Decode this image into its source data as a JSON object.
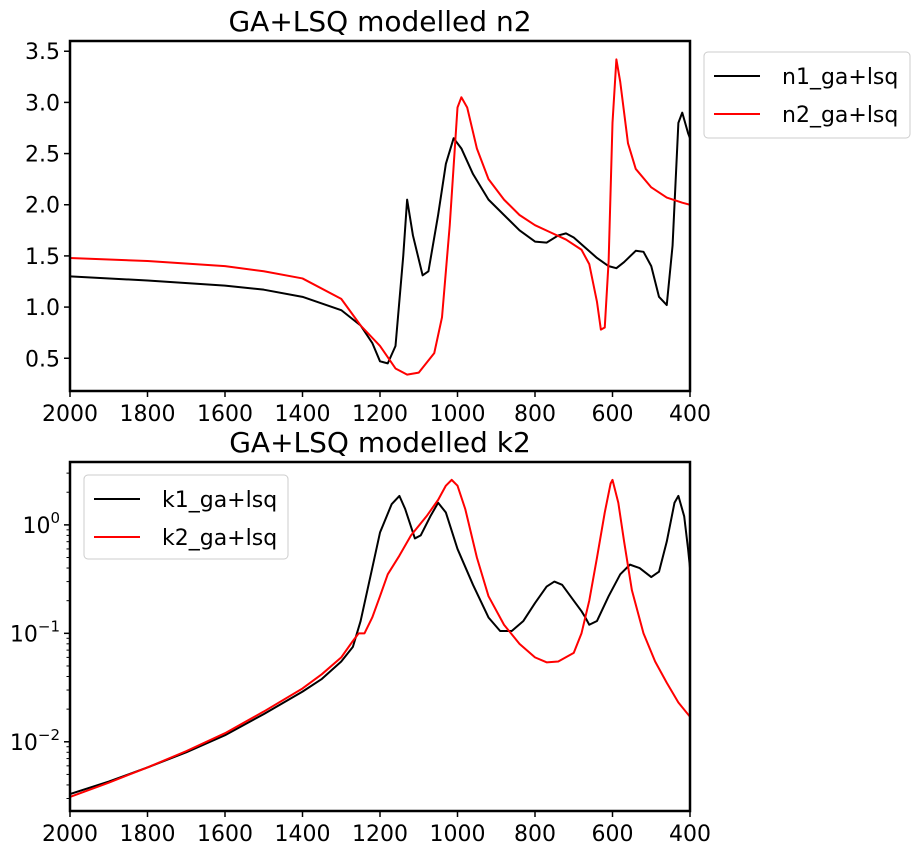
{
  "chart_data": [
    {
      "type": "line",
      "title": "GA+LSQ modelled n2",
      "xlabel": "",
      "ylabel": "",
      "xlim": [
        2000,
        400
      ],
      "ylim": [
        0.18,
        3.6
      ],
      "yscale": "linear",
      "xticks": [
        2000,
        1800,
        1600,
        1400,
        1200,
        1000,
        800,
        600,
        400
      ],
      "yticks": [
        0.5,
        1.0,
        1.5,
        2.0,
        2.5,
        3.0,
        3.5
      ],
      "legend_position": "outside-right",
      "series": [
        {
          "name": "n1_ga+lsq",
          "color": "#000000",
          "points": [
            [
              2000,
              1.3
            ],
            [
              1800,
              1.26
            ],
            [
              1600,
              1.21
            ],
            [
              1500,
              1.17
            ],
            [
              1400,
              1.1
            ],
            [
              1300,
              0.97
            ],
            [
              1250,
              0.82
            ],
            [
              1220,
              0.65
            ],
            [
              1200,
              0.47
            ],
            [
              1180,
              0.45
            ],
            [
              1160,
              0.62
            ],
            [
              1140,
              1.5
            ],
            [
              1130,
              2.05
            ],
            [
              1115,
              1.7
            ],
            [
              1090,
              1.31
            ],
            [
              1075,
              1.35
            ],
            [
              1050,
              1.9
            ],
            [
              1030,
              2.4
            ],
            [
              1010,
              2.65
            ],
            [
              990,
              2.55
            ],
            [
              960,
              2.3
            ],
            [
              920,
              2.05
            ],
            [
              880,
              1.9
            ],
            [
              840,
              1.75
            ],
            [
              800,
              1.64
            ],
            [
              770,
              1.63
            ],
            [
              740,
              1.7
            ],
            [
              720,
              1.72
            ],
            [
              700,
              1.68
            ],
            [
              670,
              1.58
            ],
            [
              640,
              1.48
            ],
            [
              610,
              1.4
            ],
            [
              590,
              1.38
            ],
            [
              570,
              1.44
            ],
            [
              540,
              1.55
            ],
            [
              520,
              1.54
            ],
            [
              500,
              1.4
            ],
            [
              480,
              1.1
            ],
            [
              460,
              1.02
            ],
            [
              445,
              1.6
            ],
            [
              430,
              2.8
            ],
            [
              420,
              2.9
            ],
            [
              405,
              2.7
            ],
            [
              400,
              2.65
            ]
          ]
        },
        {
          "name": "n2_ga+lsq",
          "color": "#ff0000",
          "points": [
            [
              2000,
              1.48
            ],
            [
              1800,
              1.45
            ],
            [
              1600,
              1.4
            ],
            [
              1500,
              1.35
            ],
            [
              1400,
              1.28
            ],
            [
              1300,
              1.08
            ],
            [
              1250,
              0.82
            ],
            [
              1200,
              0.62
            ],
            [
              1160,
              0.4
            ],
            [
              1130,
              0.34
            ],
            [
              1100,
              0.36
            ],
            [
              1060,
              0.55
            ],
            [
              1040,
              0.9
            ],
            [
              1020,
              1.8
            ],
            [
              1000,
              2.95
            ],
            [
              990,
              3.05
            ],
            [
              975,
              2.95
            ],
            [
              950,
              2.55
            ],
            [
              920,
              2.25
            ],
            [
              880,
              2.05
            ],
            [
              840,
              1.9
            ],
            [
              800,
              1.8
            ],
            [
              760,
              1.73
            ],
            [
              720,
              1.66
            ],
            [
              680,
              1.56
            ],
            [
              660,
              1.42
            ],
            [
              640,
              1.05
            ],
            [
              630,
              0.78
            ],
            [
              620,
              0.8
            ],
            [
              610,
              1.45
            ],
            [
              600,
              2.8
            ],
            [
              590,
              3.42
            ],
            [
              580,
              3.2
            ],
            [
              560,
              2.6
            ],
            [
              540,
              2.35
            ],
            [
              500,
              2.17
            ],
            [
              460,
              2.07
            ],
            [
              420,
              2.02
            ],
            [
              400,
              2.0
            ]
          ]
        }
      ]
    },
    {
      "type": "line",
      "title": "GA+LSQ modelled k2",
      "xlabel": "",
      "ylabel": "",
      "xlim": [
        2000,
        400
      ],
      "ylim": [
        0.0023,
        3.8
      ],
      "yscale": "log",
      "xticks": [
        2000,
        1800,
        1600,
        1400,
        1200,
        1000,
        800,
        600,
        400
      ],
      "yticks": [
        0.01,
        0.1,
        1
      ],
      "legend_position": "upper-left",
      "series": [
        {
          "name": "k1_ga+lsq",
          "color": "#000000",
          "points": [
            [
              2000,
              0.0033
            ],
            [
              1900,
              0.0043
            ],
            [
              1800,
              0.0058
            ],
            [
              1700,
              0.008
            ],
            [
              1600,
              0.0115
            ],
            [
              1500,
              0.018
            ],
            [
              1400,
              0.029
            ],
            [
              1350,
              0.038
            ],
            [
              1300,
              0.055
            ],
            [
              1270,
              0.075
            ],
            [
              1250,
              0.13
            ],
            [
              1220,
              0.4
            ],
            [
              1200,
              0.85
            ],
            [
              1170,
              1.55
            ],
            [
              1150,
              1.85
            ],
            [
              1135,
              1.4
            ],
            [
              1110,
              0.75
            ],
            [
              1095,
              0.8
            ],
            [
              1070,
              1.2
            ],
            [
              1050,
              1.6
            ],
            [
              1030,
              1.3
            ],
            [
              1000,
              0.6
            ],
            [
              960,
              0.28
            ],
            [
              920,
              0.14
            ],
            [
              890,
              0.105
            ],
            [
              860,
              0.105
            ],
            [
              830,
              0.13
            ],
            [
              800,
              0.19
            ],
            [
              770,
              0.27
            ],
            [
              750,
              0.3
            ],
            [
              730,
              0.28
            ],
            [
              700,
              0.2
            ],
            [
              680,
              0.16
            ],
            [
              670,
              0.14
            ],
            [
              660,
              0.12
            ],
            [
              640,
              0.13
            ],
            [
              610,
              0.22
            ],
            [
              580,
              0.35
            ],
            [
              555,
              0.43
            ],
            [
              530,
              0.4
            ],
            [
              500,
              0.33
            ],
            [
              480,
              0.37
            ],
            [
              460,
              0.7
            ],
            [
              440,
              1.6
            ],
            [
              430,
              1.85
            ],
            [
              415,
              1.2
            ],
            [
              405,
              0.6
            ],
            [
              400,
              0.4
            ]
          ]
        },
        {
          "name": "k2_ga+lsq",
          "color": "#ff0000",
          "points": [
            [
              2000,
              0.0031
            ],
            [
              1900,
              0.0042
            ],
            [
              1800,
              0.0058
            ],
            [
              1700,
              0.0082
            ],
            [
              1600,
              0.012
            ],
            [
              1500,
              0.019
            ],
            [
              1400,
              0.031
            ],
            [
              1350,
              0.042
            ],
            [
              1300,
              0.06
            ],
            [
              1270,
              0.085
            ],
            [
              1255,
              0.1
            ],
            [
              1240,
              0.1
            ],
            [
              1220,
              0.14
            ],
            [
              1200,
              0.22
            ],
            [
              1180,
              0.35
            ],
            [
              1150,
              0.52
            ],
            [
              1120,
              0.8
            ],
            [
              1080,
              1.2
            ],
            [
              1050,
              1.7
            ],
            [
              1030,
              2.3
            ],
            [
              1015,
              2.6
            ],
            [
              1000,
              2.3
            ],
            [
              980,
              1.4
            ],
            [
              950,
              0.5
            ],
            [
              920,
              0.22
            ],
            [
              880,
              0.12
            ],
            [
              840,
              0.08
            ],
            [
              800,
              0.06
            ],
            [
              770,
              0.054
            ],
            [
              740,
              0.055
            ],
            [
              700,
              0.066
            ],
            [
              680,
              0.1
            ],
            [
              660,
              0.2
            ],
            [
              640,
              0.5
            ],
            [
              620,
              1.3
            ],
            [
              605,
              2.4
            ],
            [
              600,
              2.6
            ],
            [
              585,
              1.6
            ],
            [
              570,
              0.7
            ],
            [
              550,
              0.25
            ],
            [
              520,
              0.1
            ],
            [
              490,
              0.055
            ],
            [
              460,
              0.035
            ],
            [
              430,
              0.023
            ],
            [
              400,
              0.017
            ]
          ]
        }
      ]
    }
  ]
}
